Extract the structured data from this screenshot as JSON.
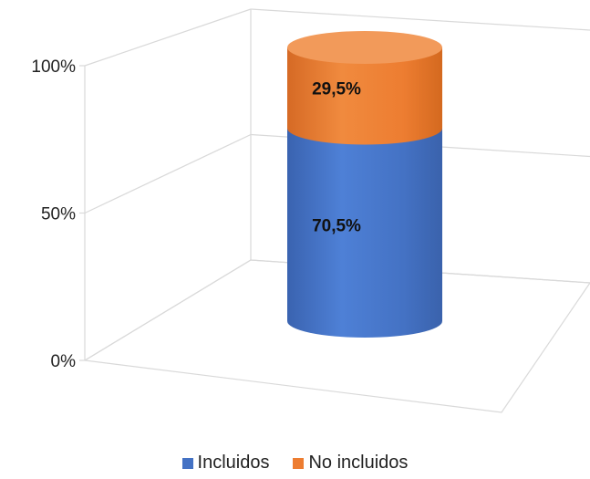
{
  "chart_data": {
    "type": "bar",
    "subtype": "stacked-100-percent-3d-cylinder",
    "categories": [
      ""
    ],
    "series": [
      {
        "name": "Incluidos",
        "values": [
          70.5
        ],
        "label": "70,5%",
        "color": "#4472C4"
      },
      {
        "name": "No incluidos",
        "values": [
          29.5
        ],
        "label": "29,5%",
        "color": "#ED7D31"
      }
    ],
    "y_ticks": [
      "0%",
      "50%",
      "100%"
    ],
    "ylim": [
      0,
      100
    ],
    "grid": true,
    "legend_position": "bottom"
  }
}
